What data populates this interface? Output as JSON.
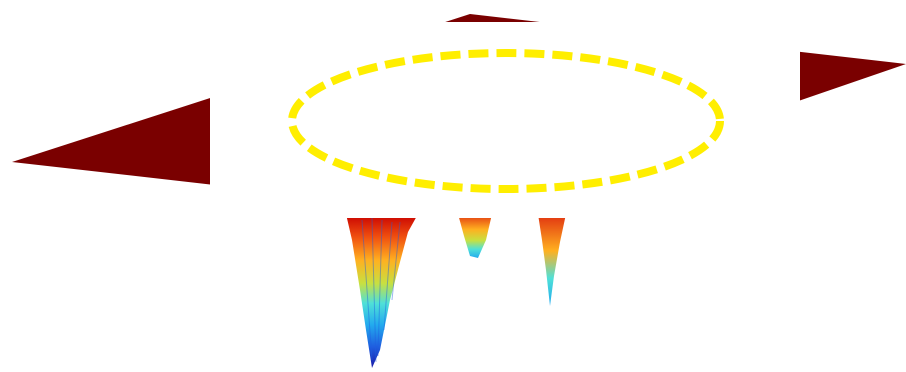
{
  "scene": {
    "background": "#ffffff",
    "plane_color": "#7a0000",
    "mask_color": "#ffffff",
    "ellipse_color": "#ffee00",
    "ellipse_style": "dashed",
    "colormap": [
      "#1a1aa8",
      "#1f5fe0",
      "#22aaee",
      "#4fe0d8",
      "#c8e040",
      "#ffb020",
      "#f05010",
      "#c80000"
    ]
  }
}
